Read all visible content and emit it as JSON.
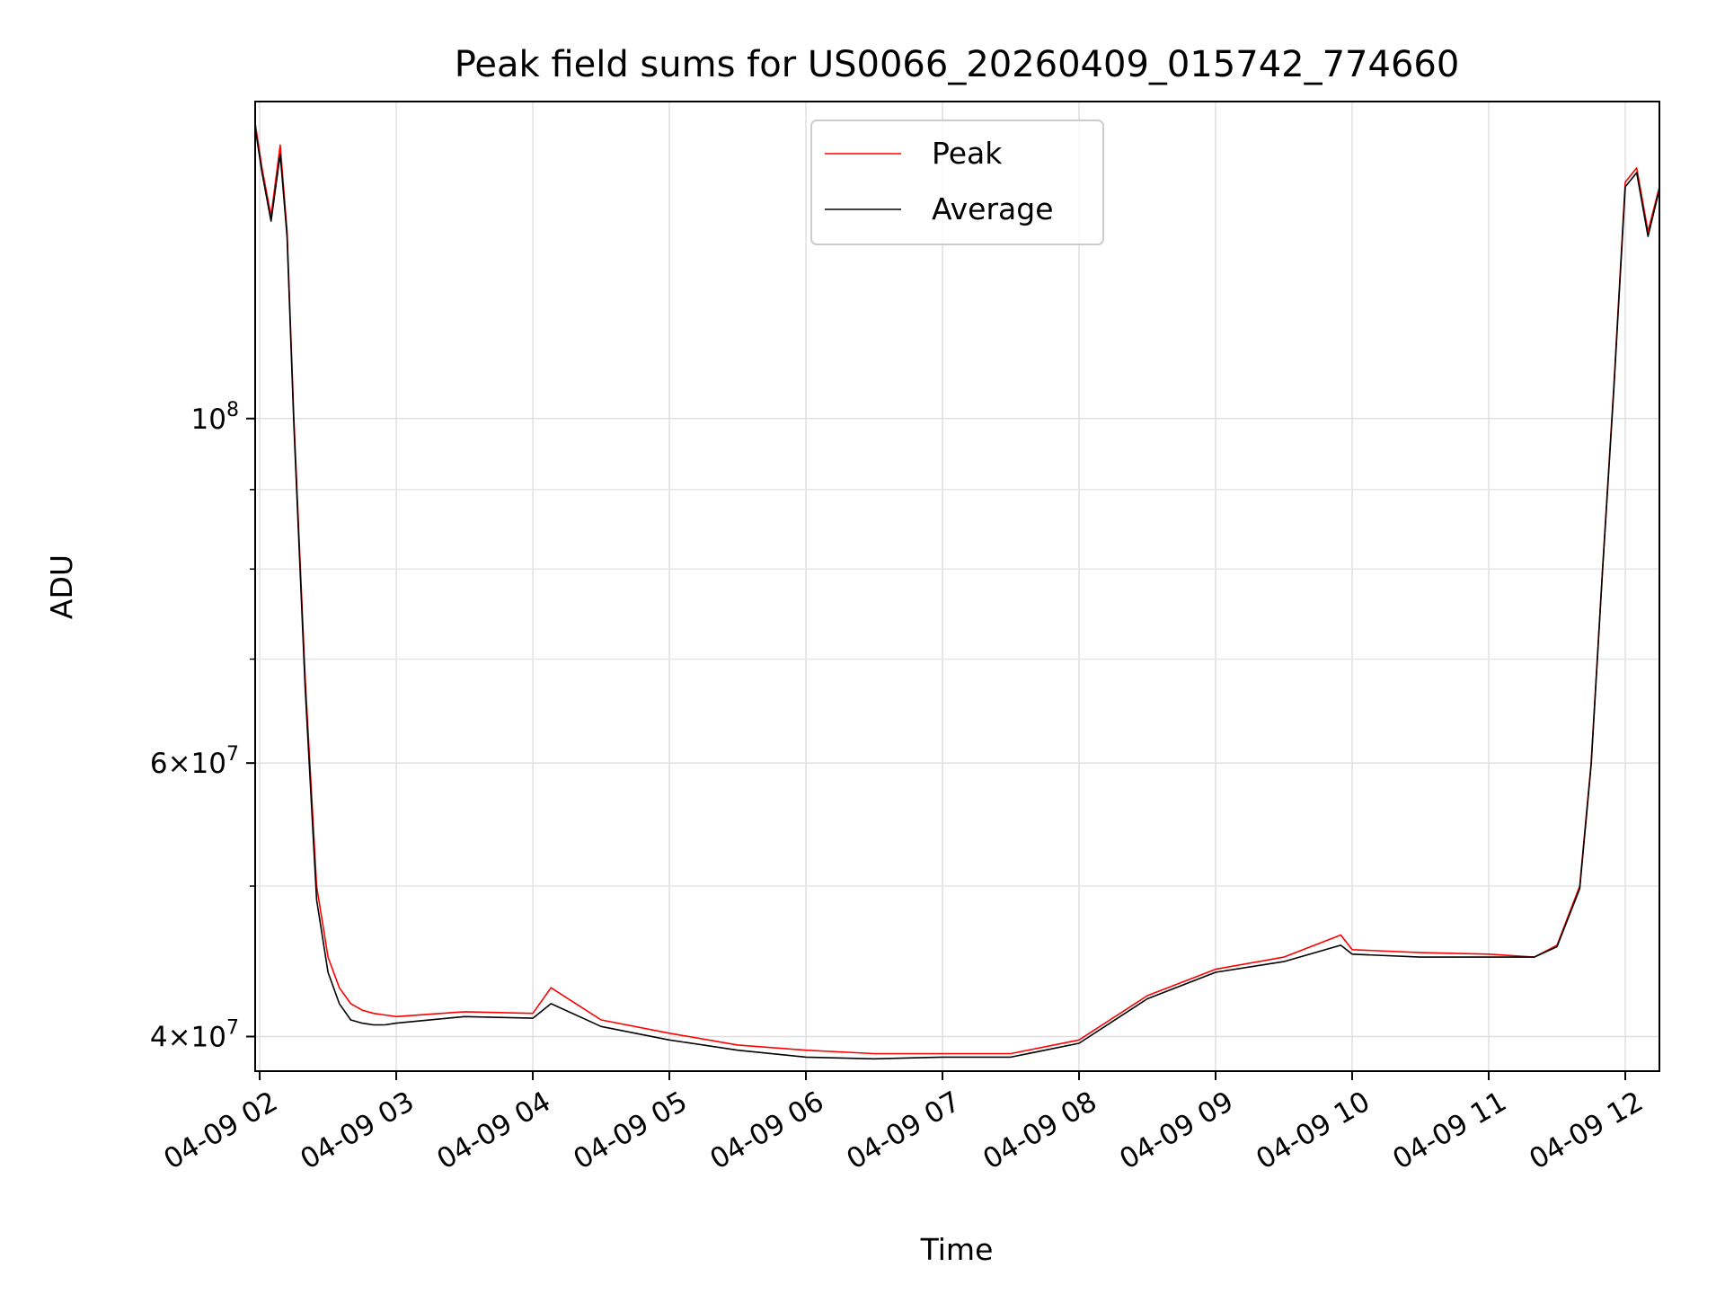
{
  "chart_data": {
    "type": "line",
    "title": "Peak field sums for US0066_20260409_015742_774660",
    "xlabel": "Time",
    "ylabel": "ADU",
    "yscale": "log",
    "xlim": [
      "04-09 01:58",
      "04-09 12:15"
    ],
    "ylim": [
      38000000,
      160000000
    ],
    "grid": true,
    "legend_position": "top-center",
    "x_tick_labels": [
      "04-09 02",
      "04-09 03",
      "04-09 04",
      "04-09 05",
      "04-09 06",
      "04-09 07",
      "04-09 08",
      "04-09 09",
      "04-09 10",
      "04-09 11",
      "04-09 12"
    ],
    "y_tick_labels": [
      {
        "value": 40000000,
        "base": "4",
        "mult": "×",
        "exp_base": "10",
        "exp": "7"
      },
      {
        "value": 60000000,
        "base": "6",
        "mult": "×",
        "exp_base": "10",
        "exp": "7"
      },
      {
        "value": 100000000,
        "base": "",
        "mult": "",
        "exp_base": "10",
        "exp": "8"
      }
    ],
    "series": [
      {
        "name": "Peak",
        "color": "#ff0000",
        "x": [
          "04-09 01:58",
          "04-09 02:01",
          "04-09 02:05",
          "04-09 02:09",
          "04-09 02:12",
          "04-09 02:15",
          "04-09 02:20",
          "04-09 02:25",
          "04-09 02:30",
          "04-09 02:35",
          "04-09 02:40",
          "04-09 02:45",
          "04-09 02:50",
          "04-09 02:55",
          "04-09 03:00",
          "04-09 03:30",
          "04-09 04:00",
          "04-09 04:08",
          "04-09 04:30",
          "04-09 05:00",
          "04-09 05:30",
          "04-09 06:00",
          "04-09 06:30",
          "04-09 07:00",
          "04-09 07:30",
          "04-09 08:00",
          "04-09 08:30",
          "04-09 09:00",
          "04-09 09:30",
          "04-09 09:55",
          "04-09 10:00",
          "04-09 10:30",
          "04-09 11:00",
          "04-09 11:20",
          "04-09 11:30",
          "04-09 11:40",
          "04-09 11:45",
          "04-09 11:50",
          "04-09 11:55",
          "04-09 12:00",
          "04-09 12:05",
          "04-09 12:10",
          "04-09 12:15"
        ],
        "y": [
          155000000,
          145000000,
          135000000,
          150000000,
          132000000,
          100000000,
          68000000,
          50000000,
          45000000,
          43000000,
          42000000,
          41600000,
          41400000,
          41300000,
          41200000,
          41500000,
          41400000,
          43000000,
          41000000,
          40200000,
          39500000,
          39200000,
          39000000,
          39000000,
          39000000,
          39800000,
          42500000,
          44200000,
          45000000,
          46500000,
          45500000,
          45300000,
          45200000,
          45000000,
          45800000,
          50000000,
          60000000,
          80000000,
          105000000,
          142000000,
          145000000,
          132000000,
          141000000
        ]
      },
      {
        "name": "Average",
        "color": "#000000",
        "x": [
          "04-09 01:58",
          "04-09 02:01",
          "04-09 02:05",
          "04-09 02:09",
          "04-09 02:12",
          "04-09 02:15",
          "04-09 02:20",
          "04-09 02:25",
          "04-09 02:30",
          "04-09 02:35",
          "04-09 02:40",
          "04-09 02:45",
          "04-09 02:50",
          "04-09 02:55",
          "04-09 03:00",
          "04-09 03:30",
          "04-09 04:00",
          "04-09 04:08",
          "04-09 04:30",
          "04-09 05:00",
          "04-09 05:30",
          "04-09 06:00",
          "04-09 06:30",
          "04-09 07:00",
          "04-09 07:30",
          "04-09 08:00",
          "04-09 08:30",
          "04-09 09:00",
          "04-09 09:30",
          "04-09 09:55",
          "04-09 10:00",
          "04-09 10:30",
          "04-09 11:00",
          "04-09 11:20",
          "04-09 11:30",
          "04-09 11:40",
          "04-09 11:45",
          "04-09 11:50",
          "04-09 11:55",
          "04-09 12:00",
          "04-09 12:05",
          "04-09 12:10",
          "04-09 12:15"
        ],
        "y": [
          154000000,
          144000000,
          134000000,
          148000000,
          131000000,
          99000000,
          67000000,
          49000000,
          44000000,
          42000000,
          41000000,
          40800000,
          40700000,
          40700000,
          40800000,
          41200000,
          41100000,
          42000000,
          40600000,
          39800000,
          39200000,
          38800000,
          38700000,
          38800000,
          38800000,
          39600000,
          42300000,
          44000000,
          44700000,
          45800000,
          45200000,
          45000000,
          45000000,
          45000000,
          45700000,
          49800000,
          59800000,
          79800000,
          104500000,
          141000000,
          144000000,
          131000000,
          140500000
        ]
      }
    ]
  }
}
